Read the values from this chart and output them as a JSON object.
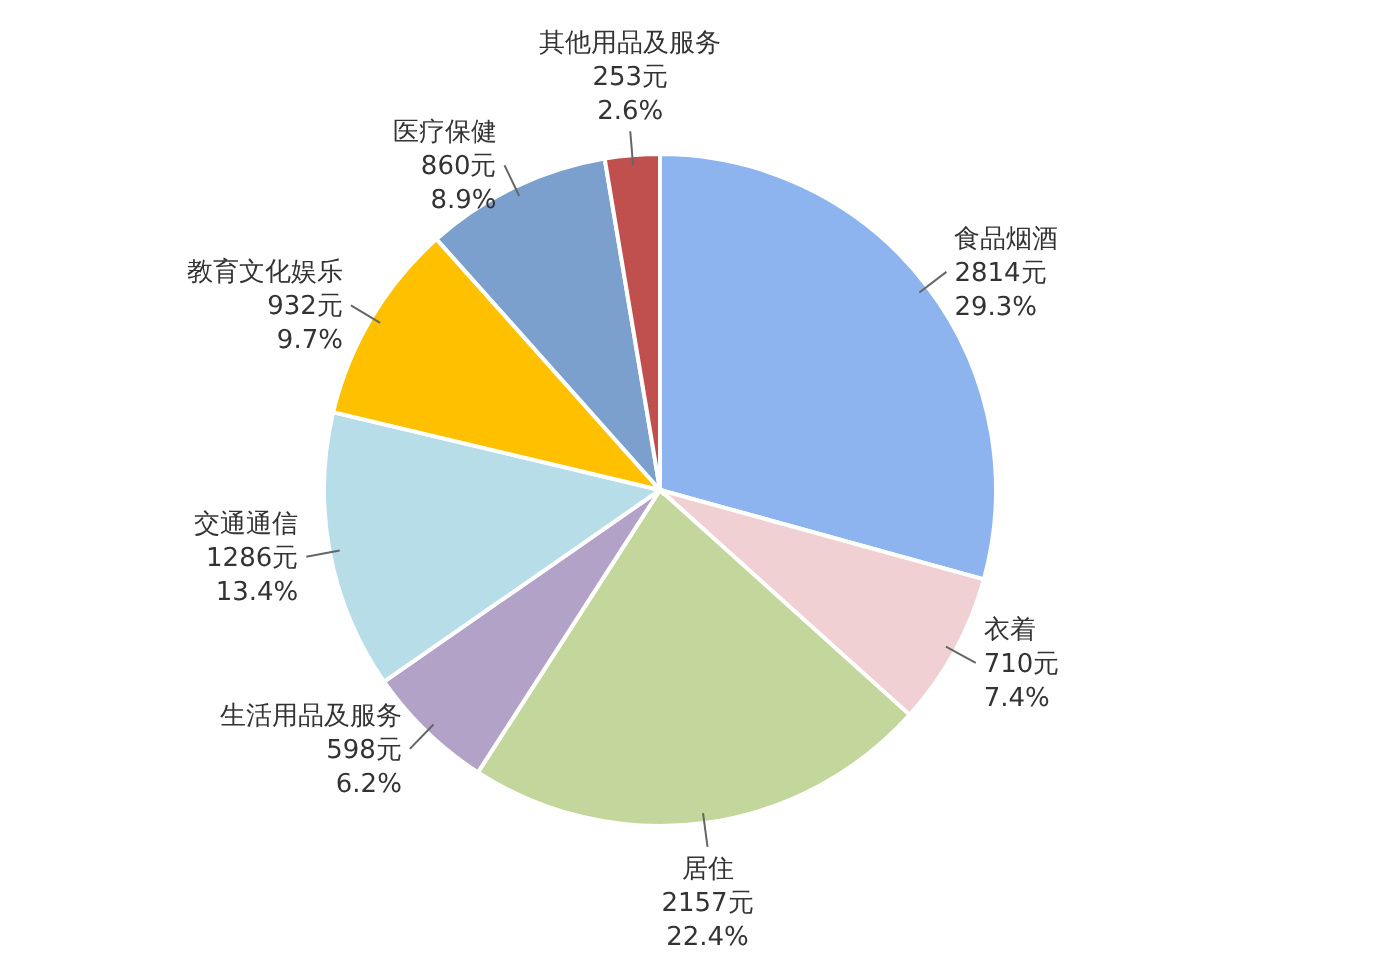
{
  "chart_data": {
    "type": "pie",
    "categories": [
      "食品烟酒",
      "衣着",
      "居住",
      "生活用品及服务",
      "交通通信",
      "教育文化娱乐",
      "医疗保健",
      "其他用品及服务"
    ],
    "values": [
      2814,
      710,
      2157,
      598,
      1286,
      932,
      860,
      253
    ],
    "colors": [
      "#8eb4ef",
      "#f0d0d2",
      "#c3d69b",
      "#b3a2c7",
      "#b7dee8",
      "#ffc000",
      "#7ba0cd",
      "#c0504d"
    ],
    "value_labels": [
      "2814元\n29.3%",
      "710元\n7.4%",
      "2157元\n22.4%",
      "598元\n6.2%",
      "1286元\n13.4%",
      "932元\n9.7%",
      "860元\n8.9%",
      "253元\n2.6%"
    ]
  }
}
